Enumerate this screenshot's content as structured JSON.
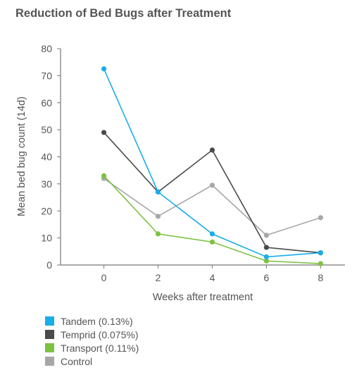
{
  "chart_data": {
    "type": "line",
    "title": "Reduction of Bed Bugs after Treatment",
    "xlabel": "Weeks after treatment",
    "ylabel": "Mean bed bug count (14d)",
    "x": [
      0,
      2,
      4,
      6,
      8
    ],
    "xticks": [
      "0",
      "2",
      "4",
      "6",
      "8"
    ],
    "xlim": [
      -1.6,
      8.9
    ],
    "ylim": [
      0,
      80
    ],
    "yticks": [
      "0",
      "10",
      "20",
      "30",
      "40",
      "50",
      "60",
      "70",
      "80"
    ],
    "grid": false,
    "legend_position": "bottom-left",
    "series": [
      {
        "name": "Tandem (0.13%)",
        "color": "#1aaee8",
        "values": [
          72.5,
          27,
          11.5,
          3,
          4.5
        ]
      },
      {
        "name": "Temprid (0.075%)",
        "color": "#4a4a4a",
        "values": [
          49,
          27,
          42.5,
          6.5,
          4.5
        ]
      },
      {
        "name": "Transport (0.11%)",
        "color": "#7cc242",
        "values": [
          33,
          11.5,
          8.5,
          1.5,
          0.5
        ]
      },
      {
        "name": "Control",
        "color": "#a7a7a7",
        "values": [
          32,
          18,
          29.5,
          11,
          17.5
        ]
      }
    ],
    "draw_order": [
      3,
      2,
      1,
      0
    ]
  }
}
